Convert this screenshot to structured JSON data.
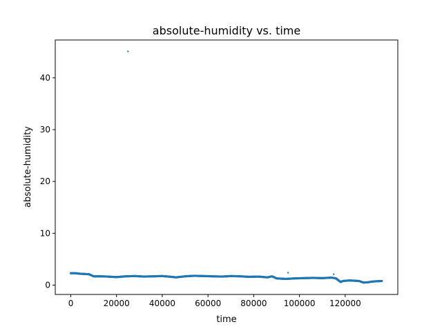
{
  "chart_data": {
    "type": "scatter",
    "title": "absolute-humidity vs. time",
    "xlabel": "time",
    "ylabel": "absolute-humidity",
    "xlim": [
      -6800,
      143000
    ],
    "ylim": [
      -1.8,
      47.3
    ],
    "xticks": [
      0,
      20000,
      40000,
      60000,
      80000,
      100000,
      120000
    ],
    "xtick_labels": [
      "0",
      "20000",
      "40000",
      "60000",
      "80000",
      "100000",
      "120000"
    ],
    "yticks": [
      0,
      10,
      20,
      30,
      40
    ],
    "ytick_labels": [
      "0",
      "10",
      "20",
      "30",
      "40"
    ],
    "grid": false,
    "marker_color": "#1f77b4",
    "series": [
      {
        "outliers": [
          [
            25000,
            45.1
          ],
          [
            95000,
            2.4
          ],
          [
            115000,
            2.1
          ]
        ],
        "baseline": [
          [
            0,
            2.3
          ],
          [
            2000,
            2.3
          ],
          [
            4000,
            2.2
          ],
          [
            6000,
            2.15
          ],
          [
            8000,
            2.1
          ],
          [
            10000,
            1.7
          ],
          [
            13000,
            1.7
          ],
          [
            16000,
            1.65
          ],
          [
            20000,
            1.55
          ],
          [
            24000,
            1.7
          ],
          [
            28000,
            1.75
          ],
          [
            32000,
            1.65
          ],
          [
            36000,
            1.7
          ],
          [
            40000,
            1.75
          ],
          [
            44000,
            1.6
          ],
          [
            46000,
            1.5
          ],
          [
            50000,
            1.7
          ],
          [
            54000,
            1.8
          ],
          [
            58000,
            1.75
          ],
          [
            62000,
            1.7
          ],
          [
            66000,
            1.65
          ],
          [
            70000,
            1.75
          ],
          [
            74000,
            1.7
          ],
          [
            78000,
            1.6
          ],
          [
            82000,
            1.65
          ],
          [
            86000,
            1.5
          ],
          [
            88000,
            1.7
          ],
          [
            90000,
            1.3
          ],
          [
            94000,
            1.2
          ],
          [
            98000,
            1.3
          ],
          [
            102000,
            1.35
          ],
          [
            106000,
            1.4
          ],
          [
            110000,
            1.35
          ],
          [
            114000,
            1.45
          ],
          [
            116000,
            1.3
          ],
          [
            118000,
            0.6
          ],
          [
            119000,
            0.8
          ],
          [
            122000,
            0.9
          ],
          [
            126000,
            0.8
          ],
          [
            128000,
            0.5
          ],
          [
            130000,
            0.55
          ],
          [
            132000,
            0.7
          ],
          [
            134000,
            0.75
          ],
          [
            136000,
            0.8
          ]
        ]
      }
    ]
  }
}
